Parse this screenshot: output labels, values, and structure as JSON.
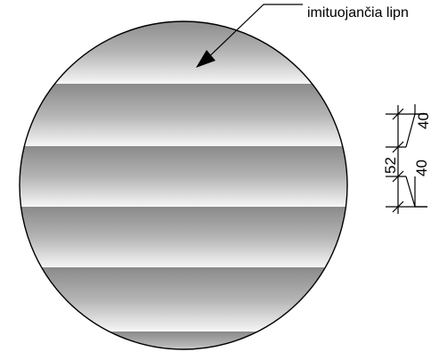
{
  "callout": {
    "label": "imituojančia lipn"
  },
  "dimensions": {
    "top_slope": "40",
    "spacing": "52",
    "bottom_slope": "40"
  },
  "colors": {
    "line": "#000000",
    "slat_dark": "#8c8c8c",
    "slat_light": "#f4f4f4",
    "background": "#ffffff"
  }
}
